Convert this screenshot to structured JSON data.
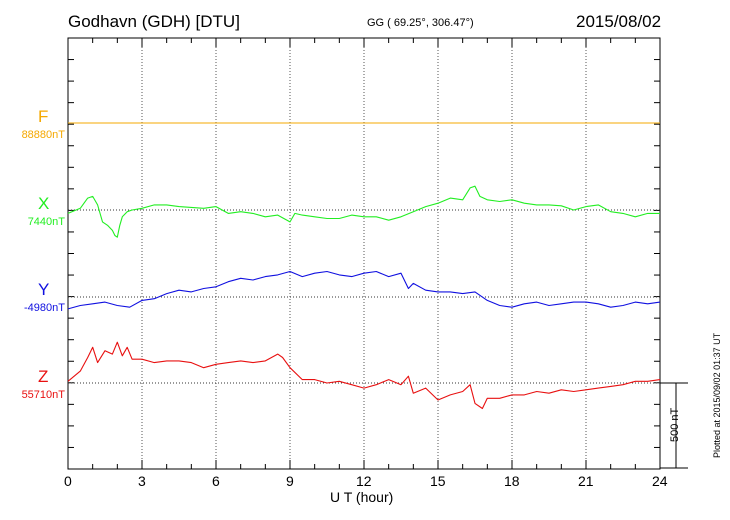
{
  "header": {
    "station": "Godhavn (GDH)  [DTU]",
    "coords": "GG ( 69.25°, 306.47°)",
    "date": "2015/08/02"
  },
  "side_note": "Plotted at 2015/09/02 01:37  UT",
  "chart_data": {
    "type": "line",
    "xlabel": "U T (hour)",
    "xlim": [
      0,
      24
    ],
    "xticks": [
      "0",
      "3",
      "6",
      "9",
      "12",
      "15",
      "18",
      "21",
      "24"
    ],
    "scale_bar": {
      "label": "500 nT",
      "value_nT": 500
    },
    "colors": {
      "F": "#f5a800",
      "X": "#22ee22",
      "Y": "#1010e0",
      "Z": "#e81010"
    },
    "series": [
      {
        "name": "F",
        "baseline_label": "88880nT",
        "baseline": 88880,
        "x": [
          0,
          24
        ],
        "y": [
          88880,
          88880
        ]
      },
      {
        "name": "X",
        "baseline_label": "7440nT",
        "baseline": 7440,
        "x": [
          0,
          0.5,
          0.8,
          1.0,
          1.2,
          1.4,
          1.6,
          1.8,
          1.9,
          2.0,
          2.1,
          2.2,
          2.4,
          2.6,
          3.0,
          3.5,
          4.0,
          4.5,
          5.0,
          5.5,
          6.0,
          6.5,
          7.0,
          7.5,
          8.0,
          8.5,
          9.0,
          9.2,
          9.5,
          10.0,
          10.5,
          11.0,
          11.5,
          12.0,
          12.5,
          13.0,
          13.5,
          14.0,
          14.5,
          15.0,
          15.5,
          16.0,
          16.3,
          16.5,
          16.7,
          17.0,
          17.5,
          18.0,
          18.5,
          19.0,
          19.5,
          20.0,
          20.5,
          21.0,
          21.5,
          22.0,
          22.5,
          23.0,
          23.5,
          24.0
        ],
        "y": [
          7420,
          7450,
          7510,
          7520,
          7470,
          7370,
          7350,
          7320,
          7290,
          7280,
          7350,
          7400,
          7430,
          7440,
          7450,
          7470,
          7470,
          7460,
          7455,
          7450,
          7460,
          7420,
          7430,
          7420,
          7400,
          7410,
          7370,
          7420,
          7410,
          7400,
          7390,
          7390,
          7410,
          7400,
          7400,
          7380,
          7400,
          7430,
          7460,
          7480,
          7510,
          7500,
          7570,
          7580,
          7520,
          7500,
          7490,
          7500,
          7480,
          7470,
          7470,
          7465,
          7440,
          7460,
          7470,
          7430,
          7420,
          7400,
          7420,
          7420
        ]
      },
      {
        "name": "Y",
        "baseline_label": "-4980nT",
        "baseline": -4980,
        "x": [
          0,
          0.5,
          1.0,
          1.5,
          2.0,
          2.5,
          3.0,
          3.5,
          4.0,
          4.5,
          5.0,
          5.5,
          6.0,
          6.5,
          7.0,
          7.5,
          8.0,
          8.5,
          9.0,
          9.5,
          10.0,
          10.5,
          11.0,
          11.5,
          12.0,
          12.5,
          13.0,
          13.5,
          13.8,
          14.0,
          14.5,
          15.0,
          15.5,
          16.0,
          16.5,
          17.0,
          17.5,
          18.0,
          18.5,
          19.0,
          19.5,
          20.0,
          20.5,
          21.0,
          21.5,
          22.0,
          22.5,
          23.0,
          23.5,
          24.0
        ],
        "y": [
          -5050,
          -5030,
          -5020,
          -5010,
          -5030,
          -5040,
          -5000,
          -4990,
          -4960,
          -4940,
          -4950,
          -4930,
          -4920,
          -4890,
          -4870,
          -4880,
          -4860,
          -4850,
          -4830,
          -4860,
          -4840,
          -4830,
          -4850,
          -4860,
          -4840,
          -4830,
          -4860,
          -4840,
          -4930,
          -4900,
          -4940,
          -4950,
          -4950,
          -4960,
          -4950,
          -5000,
          -5030,
          -5040,
          -5020,
          -5010,
          -5030,
          -5020,
          -5010,
          -5010,
          -5020,
          -5040,
          -5030,
          -5010,
          -5020,
          -5010
        ]
      },
      {
        "name": "Z",
        "baseline_label": "55710nT",
        "baseline": 55710,
        "x": [
          0,
          0.5,
          0.8,
          1.0,
          1.2,
          1.5,
          1.8,
          2.0,
          2.2,
          2.4,
          2.6,
          3.0,
          3.5,
          4.0,
          4.5,
          5.0,
          5.5,
          6.0,
          6.5,
          7.0,
          7.5,
          8.0,
          8.5,
          8.7,
          9.0,
          9.5,
          10.0,
          10.5,
          11.0,
          11.5,
          12.0,
          12.5,
          13.0,
          13.5,
          13.8,
          14.0,
          14.5,
          15.0,
          15.5,
          16.0,
          16.3,
          16.5,
          16.8,
          17.0,
          17.5,
          18.0,
          18.5,
          19.0,
          19.5,
          20.0,
          20.5,
          21.0,
          21.5,
          22.0,
          22.5,
          23.0,
          23.5,
          24.0
        ],
        "y": [
          55720,
          55780,
          55860,
          55920,
          55830,
          55900,
          55880,
          55950,
          55870,
          55920,
          55850,
          55850,
          55830,
          55840,
          55840,
          55830,
          55800,
          55820,
          55830,
          55840,
          55830,
          55840,
          55880,
          55860,
          55800,
          55730,
          55730,
          55710,
          55720,
          55700,
          55680,
          55700,
          55730,
          55700,
          55750,
          55650,
          55680,
          55610,
          55640,
          55660,
          55700,
          55590,
          55560,
          55620,
          55620,
          55640,
          55640,
          55660,
          55650,
          55670,
          55660,
          55670,
          55680,
          55690,
          55700,
          55720,
          55720,
          55730
        ]
      }
    ]
  }
}
